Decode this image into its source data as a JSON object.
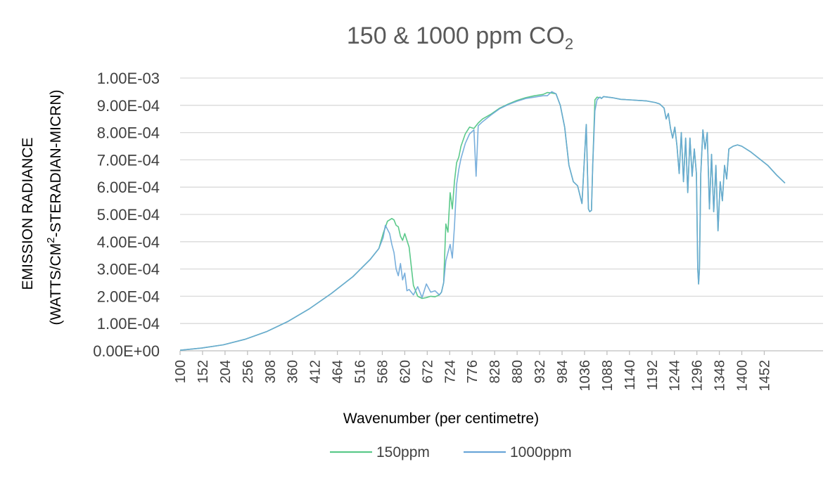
{
  "chart_data": {
    "type": "line",
    "title": "150 & 1000 ppm CO",
    "title_subscript": "2",
    "xlabel": "Wavenumber (per centimetre)",
    "ylabel_line1": "EMISSION RADIANCE",
    "ylabel_line2_prefix": "(WATTS/CM",
    "ylabel_line2_superscript": "2",
    "ylabel_line2_suffix": "-STERADIAN-MICRN)",
    "xlim": [
      100,
      1588
    ],
    "ylim": [
      0,
      0.001
    ],
    "x_ticks": [
      "100",
      "152",
      "204",
      "256",
      "308",
      "360",
      "412",
      "464",
      "516",
      "568",
      "620",
      "672",
      "724",
      "776",
      "828",
      "880",
      "932",
      "984",
      "1036",
      "1088",
      "1140",
      "1192",
      "1244",
      "1296",
      "1348",
      "1400",
      "1452"
    ],
    "y_ticks": [
      "0.00E+00",
      "1.00E-04",
      "2.00E-04",
      "3.00E-04",
      "4.00E-04",
      "5.00E-04",
      "6.00E-04",
      "7.00E-04",
      "8.00E-04",
      "9.00E-04",
      "1.00E-03"
    ],
    "y_tick_values": [
      0,
      0.0001,
      0.0002,
      0.0003,
      0.0004,
      0.0005,
      0.0006,
      0.0007,
      0.0008,
      0.0009,
      0.001
    ],
    "legend_position": "bottom",
    "series": [
      {
        "name": "150ppm",
        "color": "#5bc98a",
        "x": [
          100,
          150,
          200,
          250,
          300,
          350,
          400,
          450,
          500,
          540,
          560,
          570,
          580,
          590,
          595,
          600,
          605,
          610,
          615,
          620,
          630,
          640,
          650,
          660,
          670,
          680,
          690,
          700,
          705,
          710,
          715,
          720,
          725,
          730,
          735,
          740,
          745,
          750,
          760,
          770,
          780,
          790,
          800,
          820,
          840,
          860,
          880,
          900,
          920,
          940,
          950,
          960,
          970,
          980,
          990,
          1000,
          1010,
          1020,
          1030,
          1040,
          1045,
          1048,
          1052,
          1055,
          1060,
          1065,
          1070,
          1072,
          1075,
          1080,
          1090,
          1100,
          1120,
          1140,
          1160,
          1180,
          1200,
          1210,
          1220,
          1225,
          1230,
          1235,
          1240,
          1245,
          1250,
          1255,
          1260,
          1265,
          1270,
          1275,
          1280,
          1285,
          1290,
          1295,
          1298,
          1300,
          1302,
          1305,
          1310,
          1315,
          1320,
          1325,
          1330,
          1335,
          1340,
          1345,
          1350,
          1355,
          1360,
          1365,
          1370,
          1375,
          1380,
          1390,
          1400,
          1420,
          1440,
          1460,
          1480,
          1500
        ],
        "y": [
          2e-06,
          1e-05,
          2.2e-05,
          4.2e-05,
          7e-05,
          0.000108,
          0.000155,
          0.00021,
          0.000272,
          0.000335,
          0.000375,
          0.00043,
          0.000475,
          0.000485,
          0.00048,
          0.00046,
          0.000455,
          0.00042,
          0.000405,
          0.00043,
          0.00038,
          0.00024,
          0.0002,
          0.000192,
          0.000195,
          0.0002,
          0.000198,
          0.000205,
          0.000215,
          0.00025,
          0.000465,
          0.000435,
          0.00058,
          0.00052,
          0.00062,
          0.00069,
          0.00071,
          0.00075,
          0.000795,
          0.00082,
          0.000815,
          0.000835,
          0.00085,
          0.000868,
          0.00089,
          0.000905,
          0.000918,
          0.000928,
          0.000935,
          0.00094,
          0.000947,
          0.000945,
          0.000942,
          0.0009,
          0.00082,
          0.00068,
          0.00062,
          0.000605,
          0.00054,
          0.00083,
          0.00052,
          0.00051,
          0.000515,
          0.00068,
          0.00092,
          0.00093,
          0.000928,
          0.00093,
          0.000925,
          0.000932,
          0.00093,
          0.000928,
          0.000922,
          0.00092,
          0.000918,
          0.000916,
          0.00091,
          0.000905,
          0.00089,
          0.00085,
          0.00087,
          0.000815,
          0.00078,
          0.00082,
          0.00075,
          0.00065,
          0.0008,
          0.00062,
          0.00078,
          0.00058,
          0.00078,
          0.00064,
          0.00074,
          0.00065,
          0.0003,
          0.000245,
          0.0003,
          0.00065,
          0.00081,
          0.00074,
          0.0008,
          0.00052,
          0.00072,
          0.00051,
          0.00068,
          0.00044,
          0.00062,
          0.00055,
          0.00068,
          0.00063,
          0.00074,
          0.000745,
          0.00075,
          0.000755,
          0.00075,
          0.00073,
          0.000705,
          0.00068,
          0.000645,
          0.000615
        ]
      },
      {
        "name": "1000ppm",
        "color": "#6aa6d8",
        "x": [
          100,
          150,
          200,
          250,
          300,
          350,
          400,
          450,
          500,
          540,
          560,
          570,
          575,
          580,
          585,
          590,
          595,
          600,
          605,
          610,
          615,
          620,
          625,
          630,
          640,
          650,
          660,
          670,
          680,
          690,
          700,
          705,
          710,
          715,
          720,
          725,
          730,
          735,
          740,
          745,
          750,
          760,
          770,
          780,
          785,
          790,
          800,
          820,
          840,
          860,
          880,
          900,
          920,
          940,
          950,
          960,
          970,
          980,
          990,
          1000,
          1010,
          1020,
          1030,
          1040,
          1045,
          1048,
          1052,
          1055,
          1060,
          1065,
          1070,
          1072,
          1075,
          1080,
          1090,
          1100,
          1120,
          1140,
          1160,
          1180,
          1200,
          1210,
          1220,
          1225,
          1230,
          1235,
          1240,
          1245,
          1250,
          1255,
          1260,
          1265,
          1270,
          1275,
          1280,
          1285,
          1290,
          1295,
          1298,
          1300,
          1302,
          1305,
          1310,
          1315,
          1320,
          1325,
          1330,
          1335,
          1340,
          1345,
          1350,
          1355,
          1360,
          1365,
          1370,
          1375,
          1380,
          1390,
          1400,
          1420,
          1440,
          1460,
          1480,
          1500
        ],
        "y": [
          2e-06,
          1e-05,
          2.2e-05,
          4.2e-05,
          7e-05,
          0.000108,
          0.000155,
          0.00021,
          0.000272,
          0.000335,
          0.000375,
          0.000415,
          0.00046,
          0.000445,
          0.00043,
          0.00039,
          0.00036,
          0.0003,
          0.000275,
          0.00032,
          0.00026,
          0.000285,
          0.00022,
          0.000225,
          0.000205,
          0.000235,
          0.000195,
          0.000245,
          0.000215,
          0.00022,
          0.000205,
          0.000215,
          0.00025,
          0.00033,
          0.00036,
          0.00039,
          0.00034,
          0.000455,
          0.00061,
          0.000665,
          0.000705,
          0.00076,
          0.000795,
          0.00081,
          0.00064,
          0.000825,
          0.00084,
          0.000865,
          0.000888,
          0.000903,
          0.000915,
          0.000925,
          0.00093,
          0.000935,
          0.000935,
          0.00095,
          0.000942,
          0.0009,
          0.00082,
          0.00068,
          0.00062,
          0.000605,
          0.00054,
          0.00083,
          0.00052,
          0.00051,
          0.000515,
          0.00068,
          0.00088,
          0.00092,
          0.000928,
          0.00093,
          0.000925,
          0.000932,
          0.00093,
          0.000928,
          0.000922,
          0.00092,
          0.000918,
          0.000916,
          0.00091,
          0.000905,
          0.00089,
          0.00085,
          0.00087,
          0.000815,
          0.00078,
          0.00082,
          0.00075,
          0.00065,
          0.0008,
          0.00062,
          0.00078,
          0.00058,
          0.00078,
          0.00064,
          0.00074,
          0.00065,
          0.0003,
          0.000245,
          0.0003,
          0.00065,
          0.00081,
          0.00074,
          0.0008,
          0.00052,
          0.00072,
          0.00051,
          0.00068,
          0.00044,
          0.00062,
          0.00055,
          0.00068,
          0.00063,
          0.00074,
          0.000745,
          0.00075,
          0.000755,
          0.00075,
          0.00073,
          0.000705,
          0.00068,
          0.000645,
          0.000615
        ]
      }
    ]
  }
}
